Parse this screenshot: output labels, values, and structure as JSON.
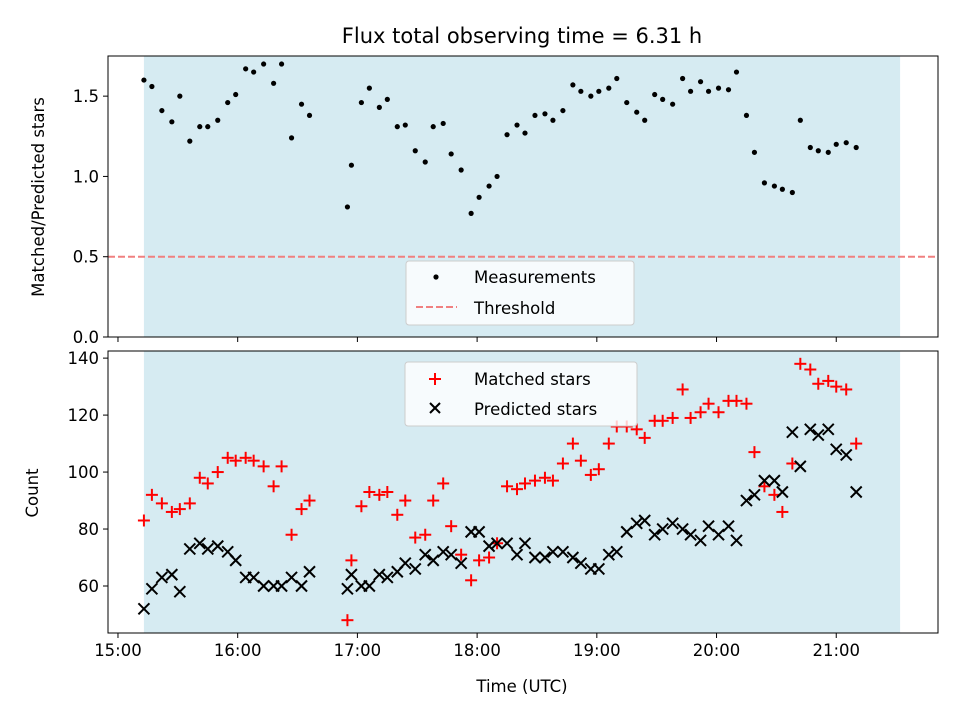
{
  "title": "Flux total observing time = 6.31 h",
  "colors": {
    "shade": "#add8e6",
    "measurement": "#000000",
    "threshold": "#f08080",
    "matched": "#ff0000",
    "predicted": "#000000"
  },
  "chart_data": [
    {
      "type": "scatter",
      "panel": "top",
      "ylabel": "Matched/Predicted stars",
      "ylim": [
        0,
        1.75
      ],
      "yticks": [
        0.0,
        0.5,
        1.0,
        1.5
      ],
      "ytick_labels": [
        "0.0",
        "0.5",
        "1.0",
        "1.5"
      ],
      "xlim": [
        "14:55",
        "21:51"
      ],
      "shaded_range": [
        "15:13",
        "21:32"
      ],
      "threshold": {
        "name": "Threshold",
        "value": 0.5
      },
      "legend": {
        "position": "bottom-center",
        "entries": [
          "Measurements",
          "Threshold"
        ]
      },
      "series": [
        {
          "name": "Measurements",
          "marker": "dot",
          "points": [
            [
              "15:13",
              1.6
            ],
            [
              "15:17",
              1.56
            ],
            [
              "15:22",
              1.41
            ],
            [
              "15:27",
              1.34
            ],
            [
              "15:31",
              1.5
            ],
            [
              "15:36",
              1.22
            ],
            [
              "15:41",
              1.31
            ],
            [
              "15:45",
              1.31
            ],
            [
              "15:50",
              1.35
            ],
            [
              "15:55",
              1.46
            ],
            [
              "15:59",
              1.51
            ],
            [
              "16:04",
              1.67
            ],
            [
              "16:08",
              1.65
            ],
            [
              "16:13",
              1.7
            ],
            [
              "16:18",
              1.58
            ],
            [
              "16:22",
              1.7
            ],
            [
              "16:27",
              1.24
            ],
            [
              "16:32",
              1.45
            ],
            [
              "16:36",
              1.38
            ],
            [
              "16:55",
              0.81
            ],
            [
              "16:57",
              1.07
            ],
            [
              "17:02",
              1.46
            ],
            [
              "17:06",
              1.55
            ],
            [
              "17:11",
              1.43
            ],
            [
              "17:15",
              1.48
            ],
            [
              "17:20",
              1.31
            ],
            [
              "17:24",
              1.32
            ],
            [
              "17:29",
              1.16
            ],
            [
              "17:34",
              1.09
            ],
            [
              "17:38",
              1.31
            ],
            [
              "17:43",
              1.33
            ],
            [
              "17:47",
              1.14
            ],
            [
              "17:52",
              1.04
            ],
            [
              "17:57",
              0.77
            ],
            [
              "18:01",
              0.87
            ],
            [
              "18:06",
              0.94
            ],
            [
              "18:10",
              1.0
            ],
            [
              "18:15",
              1.26
            ],
            [
              "18:20",
              1.32
            ],
            [
              "18:24",
              1.27
            ],
            [
              "18:29",
              1.38
            ],
            [
              "18:34",
              1.39
            ],
            [
              "18:38",
              1.35
            ],
            [
              "18:43",
              1.41
            ],
            [
              "18:48",
              1.57
            ],
            [
              "18:52",
              1.53
            ],
            [
              "18:57",
              1.5
            ],
            [
              "19:01",
              1.53
            ],
            [
              "19:06",
              1.55
            ],
            [
              "19:10",
              1.61
            ],
            [
              "19:15",
              1.46
            ],
            [
              "19:20",
              1.4
            ],
            [
              "19:24",
              1.35
            ],
            [
              "19:29",
              1.51
            ],
            [
              "19:33",
              1.48
            ],
            [
              "19:38",
              1.45
            ],
            [
              "19:43",
              1.61
            ],
            [
              "19:47",
              1.53
            ],
            [
              "19:52",
              1.59
            ],
            [
              "19:56",
              1.53
            ],
            [
              "20:01",
              1.55
            ],
            [
              "20:06",
              1.54
            ],
            [
              "20:10",
              1.65
            ],
            [
              "20:15",
              1.38
            ],
            [
              "20:19",
              1.15
            ],
            [
              "20:24",
              0.96
            ],
            [
              "20:29",
              0.94
            ],
            [
              "20:33",
              0.92
            ],
            [
              "20:38",
              0.9
            ],
            [
              "20:42",
              1.35
            ],
            [
              "20:47",
              1.18
            ],
            [
              "20:51",
              1.16
            ],
            [
              "20:56",
              1.15
            ],
            [
              "21:00",
              1.2
            ],
            [
              "21:05",
              1.21
            ],
            [
              "21:10",
              1.18
            ]
          ]
        }
      ]
    },
    {
      "type": "scatter",
      "panel": "bottom",
      "xlabel": "Time (UTC)",
      "ylabel": "Count",
      "ylim": [
        43.5,
        142.5
      ],
      "yticks": [
        60,
        80,
        100,
        120,
        140
      ],
      "ytick_labels": [
        "60",
        "80",
        "100",
        "120",
        "140"
      ],
      "xlim": [
        "14:55",
        "21:51"
      ],
      "xticks": [
        "15:00",
        "16:00",
        "17:00",
        "18:00",
        "19:00",
        "20:00",
        "21:00"
      ],
      "xtick_labels": [
        "15:00",
        "16:00",
        "17:00",
        "18:00",
        "19:00",
        "20:00",
        "21:00"
      ],
      "shaded_range": [
        "15:13",
        "21:32"
      ],
      "legend": {
        "position": "top-center",
        "entries": [
          "Matched stars",
          "Predicted stars"
        ]
      },
      "series": [
        {
          "name": "Matched stars",
          "marker": "plus",
          "points": [
            [
              "15:13",
              83
            ],
            [
              "15:17",
              92
            ],
            [
              "15:22",
              89
            ],
            [
              "15:27",
              86
            ],
            [
              "15:31",
              87
            ],
            [
              "15:36",
              89
            ],
            [
              "15:41",
              98
            ],
            [
              "15:45",
              96
            ],
            [
              "15:50",
              100
            ],
            [
              "15:55",
              105
            ],
            [
              "15:59",
              104
            ],
            [
              "16:04",
              105
            ],
            [
              "16:08",
              104
            ],
            [
              "16:13",
              102
            ],
            [
              "16:18",
              95
            ],
            [
              "16:22",
              102
            ],
            [
              "16:27",
              78
            ],
            [
              "16:32",
              87
            ],
            [
              "16:36",
              90
            ],
            [
              "16:55",
              48
            ],
            [
              "16:57",
              69
            ],
            [
              "17:02",
              88
            ],
            [
              "17:06",
              93
            ],
            [
              "17:11",
              92
            ],
            [
              "17:15",
              93
            ],
            [
              "17:20",
              85
            ],
            [
              "17:24",
              90
            ],
            [
              "17:29",
              77
            ],
            [
              "17:34",
              78
            ],
            [
              "17:38",
              90
            ],
            [
              "17:43",
              96
            ],
            [
              "17:47",
              81
            ],
            [
              "17:52",
              71
            ],
            [
              "17:57",
              62
            ],
            [
              "18:01",
              69
            ],
            [
              "18:06",
              70
            ],
            [
              "18:10",
              75
            ],
            [
              "18:15",
              95
            ],
            [
              "18:20",
              94
            ],
            [
              "18:24",
              96
            ],
            [
              "18:29",
              97
            ],
            [
              "18:34",
              98
            ],
            [
              "18:38",
              97
            ],
            [
              "18:43",
              103
            ],
            [
              "18:48",
              110
            ],
            [
              "18:52",
              104
            ],
            [
              "18:57",
              99
            ],
            [
              "19:01",
              101
            ],
            [
              "19:06",
              110
            ],
            [
              "19:10",
              116
            ],
            [
              "19:15",
              116
            ],
            [
              "19:20",
              115
            ],
            [
              "19:24",
              112
            ],
            [
              "19:29",
              118
            ],
            [
              "19:33",
              118
            ],
            [
              "19:38",
              119
            ],
            [
              "19:43",
              129
            ],
            [
              "19:47",
              119
            ],
            [
              "19:52",
              121
            ],
            [
              "19:56",
              124
            ],
            [
              "20:01",
              121
            ],
            [
              "20:06",
              125
            ],
            [
              "20:10",
              125
            ],
            [
              "20:15",
              124
            ],
            [
              "20:19",
              107
            ],
            [
              "20:24",
              95
            ],
            [
              "20:29",
              92
            ],
            [
              "20:33",
              86
            ],
            [
              "20:38",
              103
            ],
            [
              "20:42",
              138
            ],
            [
              "20:47",
              136
            ],
            [
              "20:51",
              131
            ],
            [
              "20:56",
              132
            ],
            [
              "21:00",
              130
            ],
            [
              "21:05",
              129
            ],
            [
              "21:10",
              110
            ]
          ]
        },
        {
          "name": "Predicted stars",
          "marker": "x",
          "points": [
            [
              "15:13",
              52
            ],
            [
              "15:17",
              59
            ],
            [
              "15:22",
              63
            ],
            [
              "15:27",
              64
            ],
            [
              "15:31",
              58
            ],
            [
              "15:36",
              73
            ],
            [
              "15:41",
              75
            ],
            [
              "15:45",
              73
            ],
            [
              "15:50",
              74
            ],
            [
              "15:55",
              72
            ],
            [
              "15:59",
              69
            ],
            [
              "16:04",
              63
            ],
            [
              "16:08",
              63
            ],
            [
              "16:13",
              60
            ],
            [
              "16:18",
              60
            ],
            [
              "16:22",
              60
            ],
            [
              "16:27",
              63
            ],
            [
              "16:32",
              60
            ],
            [
              "16:36",
              65
            ],
            [
              "16:55",
              59
            ],
            [
              "16:57",
              64
            ],
            [
              "17:02",
              60
            ],
            [
              "17:06",
              60
            ],
            [
              "17:11",
              64
            ],
            [
              "17:15",
              63
            ],
            [
              "17:20",
              65
            ],
            [
              "17:24",
              68
            ],
            [
              "17:29",
              66
            ],
            [
              "17:34",
              71
            ],
            [
              "17:38",
              69
            ],
            [
              "17:43",
              72
            ],
            [
              "17:47",
              71
            ],
            [
              "17:52",
              68
            ],
            [
              "17:57",
              79
            ],
            [
              "18:01",
              79
            ],
            [
              "18:06",
              74
            ],
            [
              "18:10",
              75
            ],
            [
              "18:15",
              75
            ],
            [
              "18:20",
              71
            ],
            [
              "18:24",
              75
            ],
            [
              "18:29",
              70
            ],
            [
              "18:34",
              70
            ],
            [
              "18:38",
              72
            ],
            [
              "18:43",
              72
            ],
            [
              "18:48",
              70
            ],
            [
              "18:52",
              68
            ],
            [
              "18:57",
              66
            ],
            [
              "19:01",
              66
            ],
            [
              "19:06",
              71
            ],
            [
              "19:10",
              72
            ],
            [
              "19:15",
              79
            ],
            [
              "19:20",
              82
            ],
            [
              "19:24",
              83
            ],
            [
              "19:29",
              78
            ],
            [
              "19:33",
              80
            ],
            [
              "19:38",
              82
            ],
            [
              "19:43",
              80
            ],
            [
              "19:47",
              78
            ],
            [
              "19:52",
              76
            ],
            [
              "19:56",
              81
            ],
            [
              "20:01",
              78
            ],
            [
              "20:06",
              81
            ],
            [
              "20:10",
              76
            ],
            [
              "20:15",
              90
            ],
            [
              "20:19",
              92
            ],
            [
              "20:24",
              97
            ],
            [
              "20:29",
              97
            ],
            [
              "20:33",
              93
            ],
            [
              "20:38",
              114
            ],
            [
              "20:42",
              102
            ],
            [
              "20:47",
              115
            ],
            [
              "20:51",
              113
            ],
            [
              "20:56",
              115
            ],
            [
              "21:00",
              108
            ],
            [
              "21:05",
              106
            ],
            [
              "21:10",
              93
            ]
          ]
        }
      ]
    }
  ]
}
